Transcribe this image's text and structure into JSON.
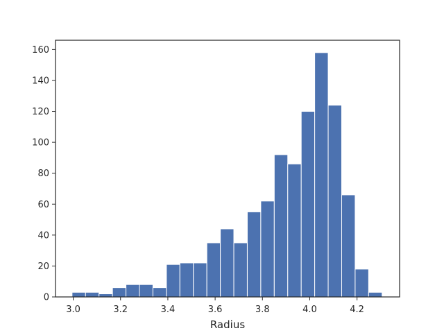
{
  "chart_data": {
    "type": "bar",
    "title": "",
    "xlabel": "Radius",
    "ylabel": "",
    "xlim": [
      2.925,
      4.38
    ],
    "ylim": [
      0,
      166
    ],
    "grid": false,
    "bar_color": "#4c72b0",
    "x_ticks": [
      3.0,
      3.2,
      3.4,
      3.6,
      3.8,
      4.0,
      4.2
    ],
    "x_tick_labels": [
      "3.0",
      "3.2",
      "3.4",
      "3.6",
      "3.8",
      "4.0",
      "4.2"
    ],
    "y_ticks": [
      0,
      20,
      40,
      60,
      80,
      100,
      120,
      140,
      160
    ],
    "y_tick_labels": [
      "0",
      "20",
      "40",
      "60",
      "80",
      "100",
      "120",
      "140",
      "160"
    ],
    "bin_edges": [
      2.995,
      3.052,
      3.109,
      3.166,
      3.223,
      3.28,
      3.337,
      3.394,
      3.451,
      3.508,
      3.565,
      3.622,
      3.679,
      3.736,
      3.793,
      3.85,
      3.907,
      3.964,
      4.021,
      4.078,
      4.135,
      4.192,
      4.249,
      4.306
    ],
    "values": [
      3,
      3,
      2,
      6,
      8,
      8,
      6,
      21,
      22,
      22,
      35,
      44,
      35,
      55,
      62,
      92,
      86,
      120,
      158,
      124,
      66,
      18,
      3
    ]
  }
}
